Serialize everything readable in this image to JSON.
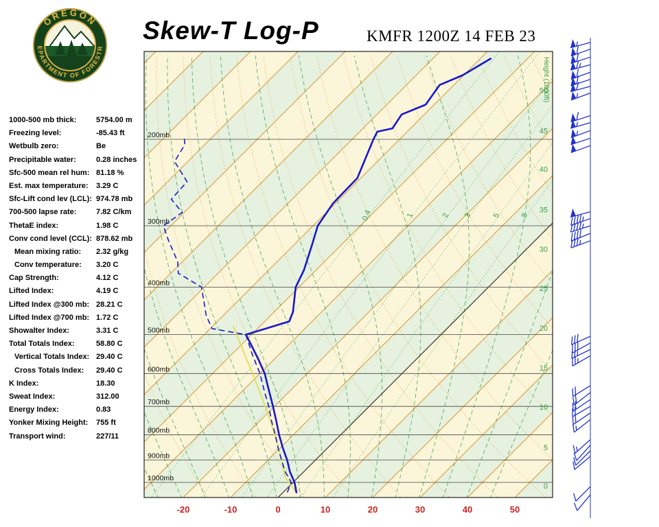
{
  "header": {
    "title": "Skew-T Log-P",
    "station_line": "KMFR 1200Z 14 FEB 23"
  },
  "logo": {
    "arc_top": "OREGON",
    "arc_bottom": "DEPARTMENT OF FORESTRY"
  },
  "indices": [
    {
      "label": "1000-500 mb thick:",
      "value": "5754.00 m",
      "indent": false
    },
    {
      "label": "Freezing level:",
      "value": "-85.43 ft",
      "indent": false
    },
    {
      "label": "Wetbulb zero:",
      "value": "Be",
      "indent": false
    },
    {
      "label": "Precipitable water:",
      "value": "0.28 inches",
      "indent": false
    },
    {
      "label": "Sfc-500 mean rel hum:",
      "value": "81.18 %",
      "indent": false
    },
    {
      "label": "Est. max temperature:",
      "value": "3.29 C",
      "indent": false
    },
    {
      "label": "Sfc-Lift cond lev (LCL):",
      "value": "974.78 mb",
      "indent": false
    },
    {
      "label": "700-500 lapse rate:",
      "value": "7.82 C/km",
      "indent": false
    },
    {
      "label": "ThetaE index:",
      "value": "1.98 C",
      "indent": false
    },
    {
      "label": "Conv cond level (CCL):",
      "value": "878.62 mb",
      "indent": false
    },
    {
      "label": "Mean mixing ratio:",
      "value": "2.32 g/kg",
      "indent": true
    },
    {
      "label": "Conv temperature:",
      "value": "3.20 C",
      "indent": true
    },
    {
      "label": "Cap Strength:",
      "value": "4.12 C",
      "indent": false
    },
    {
      "label": "Lifted Index:",
      "value": "4.19 C",
      "indent": false
    },
    {
      "label": "Lifted Index @300 mb:",
      "value": "28.21 C",
      "indent": false
    },
    {
      "label": "Lifted Index @700 mb:",
      "value": "1.72 C",
      "indent": false
    },
    {
      "label": "Showalter Index:",
      "value": "3.31 C",
      "indent": false
    },
    {
      "label": "Total Totals Index:",
      "value": "58.80 C",
      "indent": false
    },
    {
      "label": "Vertical Totals Index:",
      "value": "29.40 C",
      "indent": true
    },
    {
      "label": "Cross Totals Index:",
      "value": "29.40 C",
      "indent": true
    },
    {
      "label": "K Index:",
      "value": "18.30",
      "indent": false
    },
    {
      "label": "Sweat Index:",
      "value": "312.00",
      "indent": false
    },
    {
      "label": "Energy Index:",
      "value": "0.83",
      "indent": false
    },
    {
      "label": "Yonker Mixing Height:",
      "value": "755 ft",
      "indent": false
    },
    {
      "label": "Transport wind:",
      "value": "227/11",
      "indent": false
    }
  ],
  "chart_data": {
    "type": "skewt-log-p",
    "station": "KMFR",
    "valid_time": "1200Z 14 FEB 23",
    "x_axis": {
      "ticks_c": [
        -20,
        -10,
        0,
        10,
        20,
        30,
        40,
        50
      ],
      "unit": "C"
    },
    "pressure_ticks_mb": [
      200,
      300,
      400,
      500,
      600,
      700,
      800,
      900,
      1000
    ],
    "pressure_suffix": "mb",
    "height_axis": {
      "title": "Height (1000ft)",
      "ticks": [
        {
          "label": "50",
          "p": 159
        },
        {
          "label": "45",
          "p": 192
        },
        {
          "label": "40",
          "p": 230
        },
        {
          "label": "35",
          "p": 278
        },
        {
          "label": "30",
          "p": 335
        },
        {
          "label": "25",
          "p": 402
        },
        {
          "label": "20",
          "p": 485
        },
        {
          "label": "15",
          "p": 584
        },
        {
          "label": "10",
          "p": 702
        },
        {
          "label": "5",
          "p": 849
        },
        {
          "label": "0",
          "p": 1017
        }
      ]
    },
    "mixing_ratio_labels_gkg": [
      0.4,
      1,
      2,
      3,
      5,
      8
    ],
    "mixing_ratio_label_pressure": 287,
    "temperature_profile_p_c": [
      [
        1048,
        2.8
      ],
      [
        1000,
        0.3
      ],
      [
        950,
        -3.0
      ],
      [
        900,
        -6.0
      ],
      [
        850,
        -9.5
      ],
      [
        800,
        -13.0
      ],
      [
        750,
        -16.5
      ],
      [
        700,
        -20.3
      ],
      [
        650,
        -24.5
      ],
      [
        600,
        -29.0
      ],
      [
        560,
        -33.5
      ],
      [
        520,
        -38.5
      ],
      [
        500,
        -41.2
      ],
      [
        470,
        -34.8
      ],
      [
        450,
        -36.0
      ],
      [
        400,
        -40.7
      ],
      [
        370,
        -42.5
      ],
      [
        330,
        -46.0
      ],
      [
        300,
        -49.0
      ],
      [
        270,
        -50.5
      ],
      [
        240,
        -50.7
      ],
      [
        220,
        -53.0
      ],
      [
        200,
        -55.5
      ],
      [
        193,
        -56.3
      ],
      [
        190,
        -53.8
      ],
      [
        178,
        -54.8
      ],
      [
        170,
        -51.8
      ],
      [
        155,
        -53.0
      ],
      [
        148,
        -50.2
      ],
      [
        137,
        -47.8
      ]
    ],
    "dewpoint_profile_p_c": [
      [
        1048,
        0.9
      ],
      [
        1000,
        -0.4
      ],
      [
        950,
        -4.0
      ],
      [
        900,
        -7.2
      ],
      [
        850,
        -10.5
      ],
      [
        800,
        -13.8
      ],
      [
        750,
        -17.5
      ],
      [
        700,
        -21.2
      ],
      [
        650,
        -25.5
      ],
      [
        600,
        -30.0
      ],
      [
        550,
        -35.5
      ],
      [
        500,
        -41.2
      ],
      [
        486,
        -49.6
      ],
      [
        457,
        -53.6
      ],
      [
        400,
        -60.6
      ],
      [
        375,
        -68.4
      ],
      [
        355,
        -71.0
      ],
      [
        321,
        -77.5
      ],
      [
        300,
        -81.6
      ],
      [
        282,
        -80.4
      ],
      [
        265,
        -85.5
      ],
      [
        244,
        -85.9
      ],
      [
        222,
        -92.8
      ],
      [
        205,
        -94.2
      ],
      [
        198,
        -95.9
      ]
    ],
    "parcel": {
      "surface_p": 1048,
      "surface_t": 2.8,
      "lcl_p": 975,
      "top_p": 480
    },
    "wind_barbs_p_dir_spd": [
      [
        1060,
        220,
        10
      ],
      [
        1020,
        225,
        10
      ],
      [
        885,
        230,
        10
      ],
      [
        862,
        225,
        10
      ],
      [
        840,
        222,
        10
      ],
      [
        818,
        228,
        15
      ],
      [
        745,
        232,
        15
      ],
      [
        722,
        236,
        18
      ],
      [
        700,
        240,
        20
      ],
      [
        678,
        236,
        20
      ],
      [
        656,
        232,
        18
      ],
      [
        635,
        238,
        22
      ],
      [
        552,
        240,
        25
      ],
      [
        536,
        244,
        25
      ],
      [
        520,
        241,
        28
      ],
      [
        504,
        246,
        30
      ],
      [
        322,
        250,
        35
      ],
      [
        311,
        248,
        40
      ],
      [
        300,
        252,
        45
      ],
      [
        290,
        250,
        45
      ],
      [
        281,
        255,
        48
      ],
      [
        206,
        250,
        50
      ],
      [
        199,
        252,
        52
      ],
      [
        192,
        250,
        55
      ],
      [
        185,
        254,
        55
      ],
      [
        179,
        252,
        58
      ],
      [
        161,
        250,
        55
      ],
      [
        156,
        255,
        60
      ],
      [
        151,
        252,
        62
      ],
      [
        146,
        250,
        60
      ],
      [
        141,
        255,
        65
      ],
      [
        136,
        252,
        60
      ],
      [
        131,
        250,
        58
      ],
      [
        127,
        255,
        55
      ]
    ],
    "colors": {
      "trace_blue": "#1818C8",
      "barb_blue": "#2233CC",
      "axis_red": "#CC2222",
      "isotherm_orange": "#DD9933",
      "adiabat_orange": "#D99B33",
      "green": "#3AA04A",
      "band_cream": "#FBF5DA",
      "band_green": "#E6F1DF",
      "parcel_yellow": "#E2DE55",
      "zero_isotherm": "#222222"
    }
  }
}
